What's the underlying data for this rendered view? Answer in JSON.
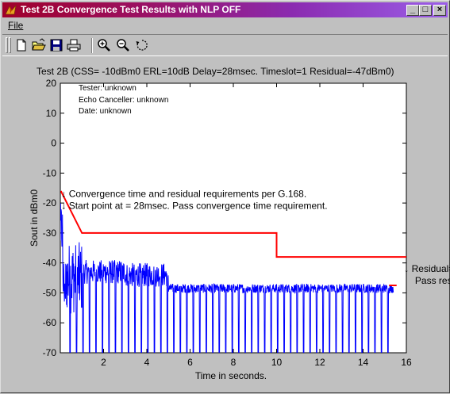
{
  "window": {
    "title": "Test 2B Convergence Test Results with NLP OFF",
    "controls": {
      "minimize": "_",
      "maximize": "□",
      "close": "×"
    }
  },
  "menu": {
    "file": "File"
  },
  "toolbar": [
    "new-file-icon",
    "open-folder-icon",
    "save-disk-icon",
    "print-icon",
    "zoom-in-icon",
    "zoom-out-icon",
    "rotate-icon"
  ],
  "colors": {
    "plot_background": "#ffffff",
    "figure_background": "#c0c0c0",
    "signal": "#0000ff",
    "requirement": "#ff0000"
  },
  "chart_data": {
    "type": "line",
    "title": "Test 2B (CSS= -10dBm0 ERL=10dB Delay=28msec. Timeslot=1 Residual=-47dBm0)",
    "xlabel": "Time in seconds.",
    "ylabel": "Sout in dBm0",
    "xlim": [
      0.0,
      16
    ],
    "ylim": [
      -70,
      20
    ],
    "x_ticks": [
      "2",
      "4",
      "6",
      "8",
      "10",
      "12",
      "14",
      "16"
    ],
    "y_ticks": [
      "20",
      "10",
      "0",
      "-10",
      "-20",
      "-30",
      "-40",
      "-50",
      "-60",
      "-70"
    ],
    "info_text": [
      "Tester: unknown",
      "Echo Canceller: unknown",
      "Date: unknown"
    ],
    "annotations": [
      {
        "text": "↓ Convergence time and residual requirements per G.168.",
        "x": 0.05,
        "y": -18
      },
      {
        "text": "↓ Start point at = 28msec.  Pass convergence time requirement.",
        "x": 0.05,
        "y": -22
      },
      {
        "text": "↓ Residual=",
        "x": 15.9,
        "y": -43
      },
      {
        "text": "Pass res",
        "x": 16.4,
        "y": -47
      }
    ],
    "series": [
      {
        "color": "#ff0000",
        "x": [
          0.028,
          1.0,
          10.0,
          10.0,
          16.0
        ],
        "y": [
          -16,
          -30,
          -30,
          -38,
          -38
        ]
      },
      {
        "color": "#ff0000",
        "x": [
          15.2,
          15.55
        ],
        "y": [
          -47.5,
          -47.5
        ]
      },
      {
        "color": "#0000ff",
        "segments": [
          {
            "x0": 0.0,
            "x1": 0.3,
            "base": -47,
            "amp": 9,
            "floor_dips": false
          },
          {
            "x0": 0.3,
            "x1": 1.0,
            "base": -45,
            "amp": 12,
            "floor_dips": true
          },
          {
            "x0": 1.0,
            "x1": 3.0,
            "base": -43,
            "amp": 4,
            "floor_dips": true
          },
          {
            "x0": 3.0,
            "x1": 5.0,
            "base": -44,
            "amp": 4,
            "floor_dips": true
          },
          {
            "x0": 5.0,
            "x1": 15.4,
            "base": -48.5,
            "amp": 1.5,
            "floor_dips": true
          }
        ],
        "dip_period": 0.3,
        "dip_floor": -70,
        "end_x": 15.4
      }
    ]
  }
}
